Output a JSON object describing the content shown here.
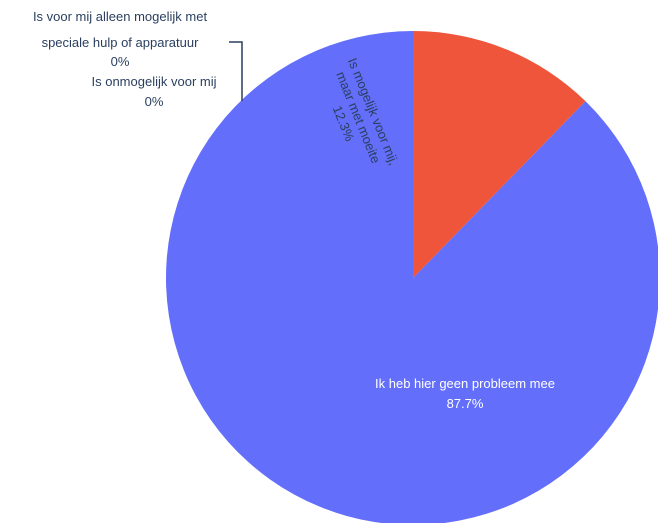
{
  "chart_data": {
    "type": "pie",
    "title": "",
    "labels": [
      "Ik heb hier geen probleem mee",
      "Is mogelijk voor mij, maar met moeite",
      "Is onmogelijk voor mij",
      "Is voor mij alleen mogelijk met speciale hulp of apparatuur"
    ],
    "values": [
      87.7,
      12.3,
      0,
      0
    ],
    "display": {
      "slice_0_line1": "Ik heb hier geen probleem mee",
      "slice_0_pct": "87.7%",
      "slice_1_line1": "Is mogelijk voor mij,",
      "slice_1_line2": "maar met moeite",
      "slice_1_pct": "12.3%",
      "slice_2_line1": "Is onmogelijk voor mij",
      "slice_2_pct": "0%",
      "slice_3_line1": "Is voor mij alleen mogelijk met",
      "slice_3_line2": "speciale hulp of apparatuur",
      "slice_3_pct": "0%"
    },
    "colors": [
      "#636efa",
      "#ef553b",
      "#00cc96",
      "#ab63fa"
    ],
    "legend": "none",
    "start_angle_deg": 0,
    "direction": "counterclockwise"
  }
}
